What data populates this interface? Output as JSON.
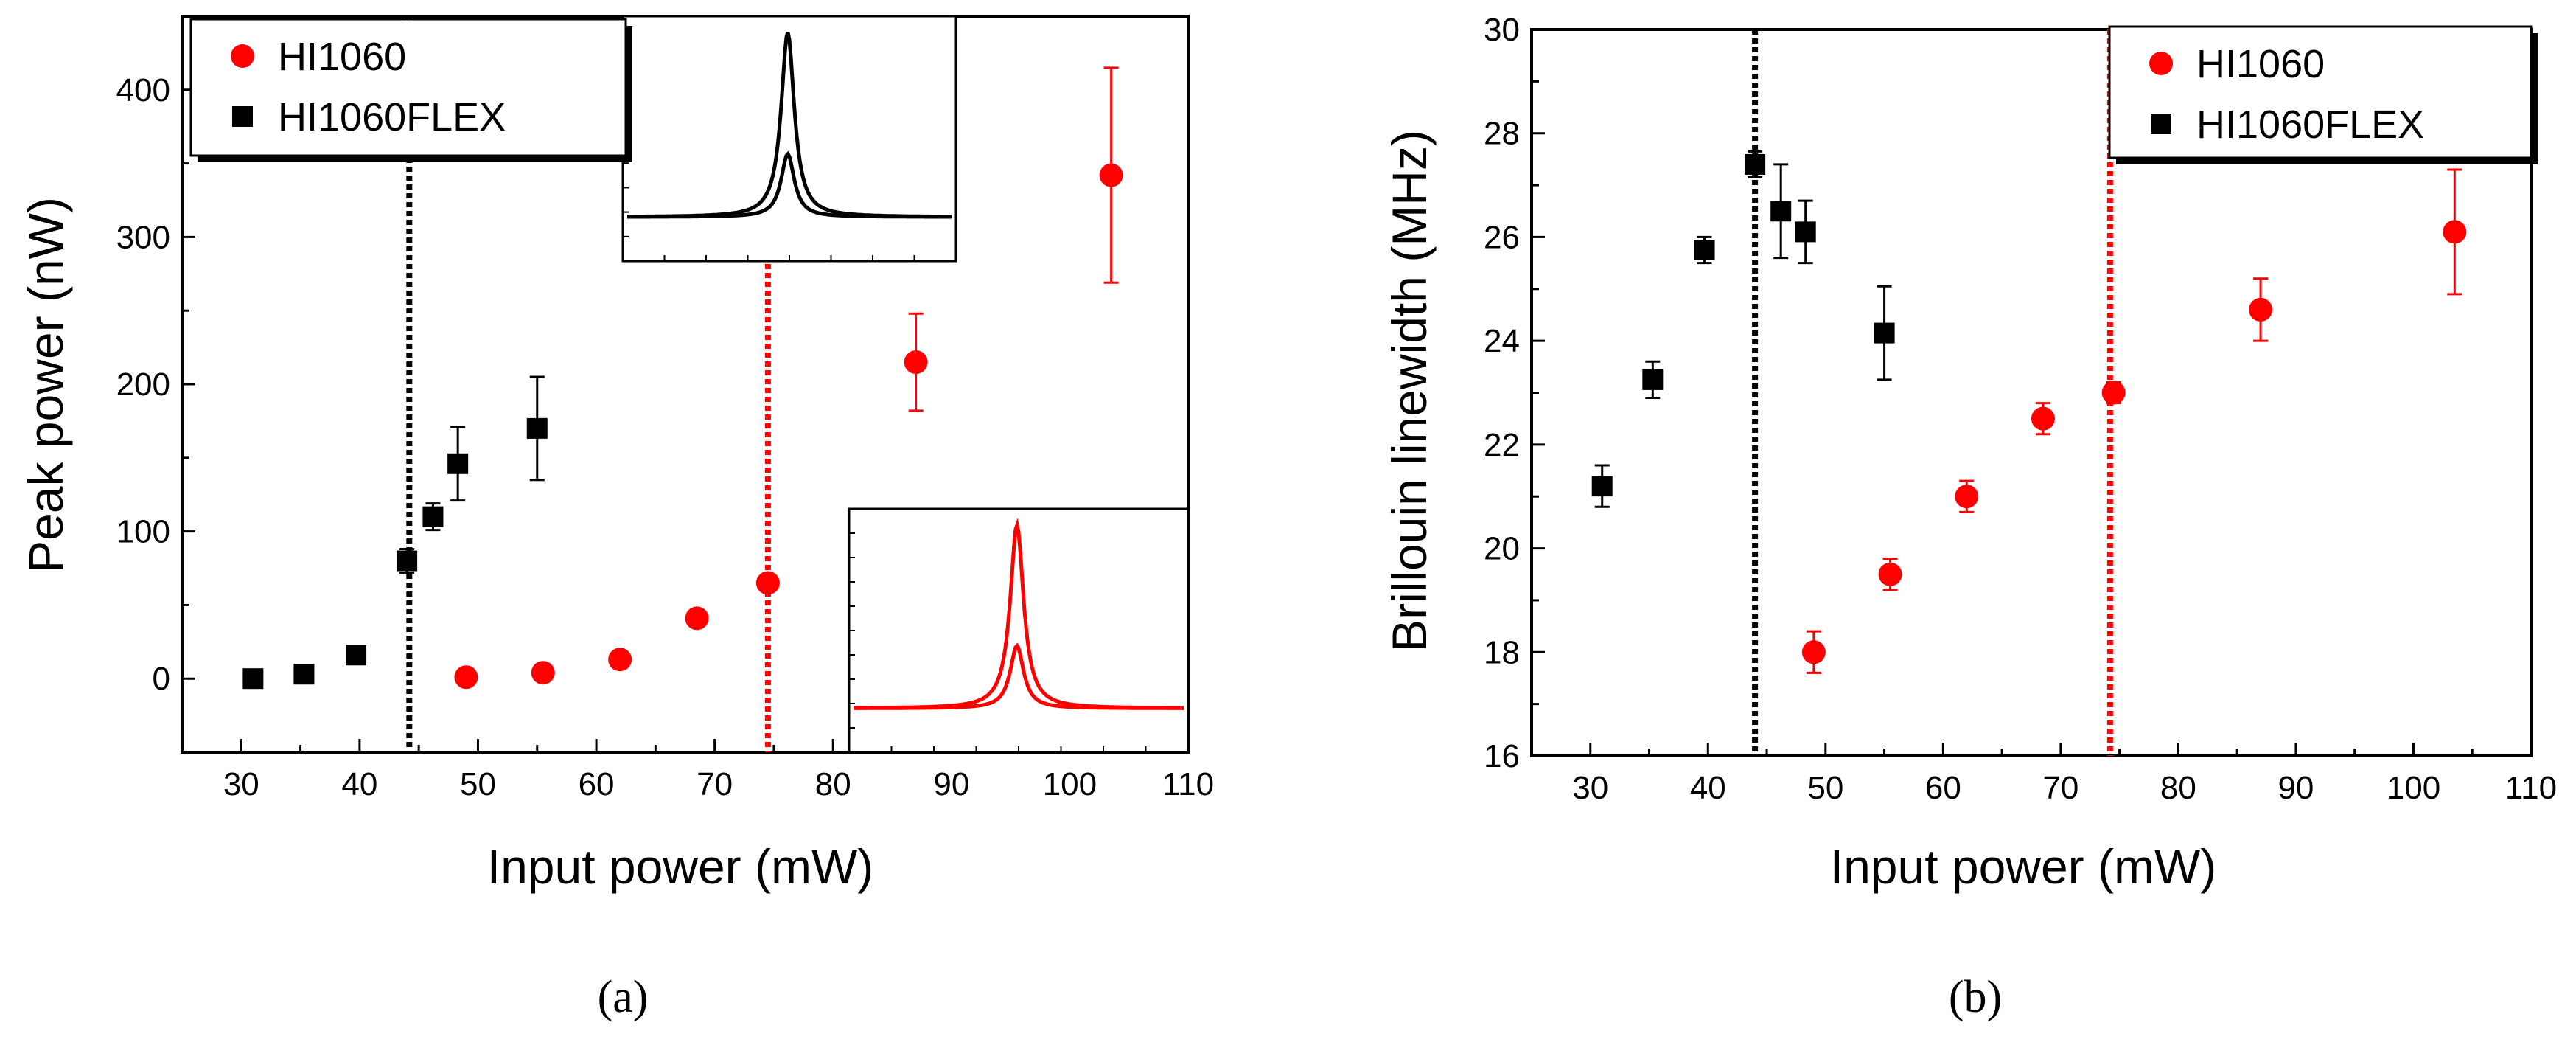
{
  "figure": {
    "panel_labels": [
      "(a)",
      "(b)"
    ],
    "colors": {
      "hi1060": "#ff0000",
      "hi1060flex": "#000000",
      "axis": "#000000",
      "background": "#ffffff"
    }
  },
  "chart_data": [
    {
      "type": "scatter",
      "panel_label": "(a)",
      "title": "",
      "xlabel": "Input power (mW)",
      "ylabel": "Peak power (nW)",
      "xlim": [
        25,
        110
      ],
      "ylim": [
        -50,
        450
      ],
      "xticks": [
        30,
        40,
        50,
        60,
        70,
        80,
        90,
        100,
        110
      ],
      "yticks": [
        0,
        100,
        200,
        300,
        400
      ],
      "legend": {
        "position": "top-left",
        "entries": [
          {
            "label": "HI1060",
            "marker": "circle",
            "color": "#ff0000"
          },
          {
            "label": "HI1060FLEX",
            "marker": "square",
            "color": "#000000"
          }
        ]
      },
      "series": [
        {
          "name": "HI1060",
          "marker": "circle",
          "color": "#ff0000",
          "points": [
            {
              "x": 49.0,
              "y": 1
            },
            {
              "x": 55.5,
              "y": 4
            },
            {
              "x": 62.0,
              "y": 13
            },
            {
              "x": 68.5,
              "y": 41
            },
            {
              "x": 74.5,
              "y": 65
            },
            {
              "x": 87.0,
              "y": 215,
              "err": 33
            },
            {
              "x": 103.5,
              "y": 342,
              "err": 73
            }
          ]
        },
        {
          "name": "HI1060FLEX",
          "marker": "square",
          "color": "#000000",
          "points": [
            {
              "x": 31.0,
              "y": 0
            },
            {
              "x": 35.3,
              "y": 3
            },
            {
              "x": 39.7,
              "y": 16
            },
            {
              "x": 44.0,
              "y": 80,
              "err": 8
            },
            {
              "x": 46.2,
              "y": 110,
              "err": 9
            },
            {
              "x": 48.3,
              "y": 146,
              "err": 25
            },
            {
              "x": 55.0,
              "y": 170,
              "err": 35
            }
          ]
        }
      ],
      "threshold_lines": [
        {
          "x": 44.2,
          "color": "#000000",
          "style": "dotted"
        },
        {
          "x": 74.5,
          "color": "#ff0000",
          "style": "dotted"
        }
      ],
      "insets": [
        {
          "description": "spectrum",
          "color": "#000000",
          "position": "top-center"
        },
        {
          "description": "spectrum",
          "color": "#ff0000",
          "position": "bottom-right"
        }
      ]
    },
    {
      "type": "scatter",
      "panel_label": "(b)",
      "title": "",
      "xlabel": "Input power (mW)",
      "ylabel": "Brillouin linewidth (MHz)",
      "xlim": [
        25,
        110
      ],
      "ylim": [
        16,
        30
      ],
      "xticks": [
        30,
        40,
        50,
        60,
        70,
        80,
        90,
        100,
        110
      ],
      "yticks": [
        16,
        18,
        20,
        22,
        24,
        26,
        28,
        30
      ],
      "legend": {
        "position": "top-right",
        "entries": [
          {
            "label": "HI1060",
            "marker": "circle",
            "color": "#ff0000"
          },
          {
            "label": "HI1060FLEX",
            "marker": "square",
            "color": "#000000"
          }
        ]
      },
      "series": [
        {
          "name": "HI1060",
          "marker": "circle",
          "color": "#ff0000",
          "points": [
            {
              "x": 49.0,
              "y": 18.0,
              "err": 0.4
            },
            {
              "x": 55.5,
              "y": 19.5,
              "err": 0.3
            },
            {
              "x": 62.0,
              "y": 21.0,
              "err": 0.3
            },
            {
              "x": 68.5,
              "y": 22.5,
              "err": 0.3
            },
            {
              "x": 74.5,
              "y": 23.0,
              "err": 0.2
            },
            {
              "x": 87.0,
              "y": 24.6,
              "err": 0.6
            },
            {
              "x": 103.5,
              "y": 26.1,
              "err": 1.2
            }
          ]
        },
        {
          "name": "HI1060FLEX",
          "marker": "square",
          "color": "#000000",
          "points": [
            {
              "x": 31.0,
              "y": 21.2,
              "err": 0.4
            },
            {
              "x": 35.3,
              "y": 23.25,
              "err": 0.35
            },
            {
              "x": 39.7,
              "y": 25.75,
              "err": 0.25
            },
            {
              "x": 44.0,
              "y": 27.4,
              "err": 0.25
            },
            {
              "x": 46.2,
              "y": 26.5,
              "err": 0.9
            },
            {
              "x": 48.3,
              "y": 26.1,
              "err": 0.6
            },
            {
              "x": 55.0,
              "y": 24.15,
              "err": 0.9
            }
          ]
        }
      ],
      "threshold_lines": [
        {
          "x": 44.0,
          "color": "#000000",
          "style": "dotted"
        },
        {
          "x": 74.2,
          "color": "#ff0000",
          "style": "dotted"
        }
      ]
    }
  ]
}
